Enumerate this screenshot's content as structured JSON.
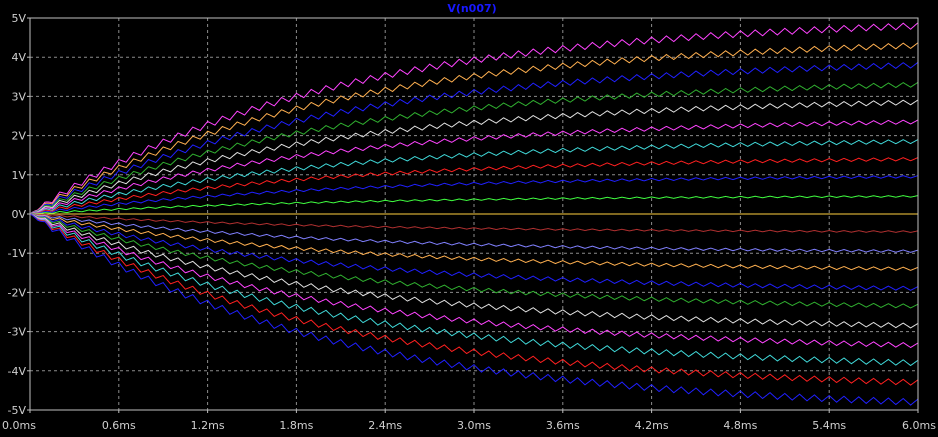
{
  "chart_data": {
    "type": "line",
    "title": "V(n007)",
    "title_color": "#1818ff",
    "background": "#000000",
    "frame_color": "#c0c0c0",
    "grid": true,
    "grid_color": "#8c8c8c",
    "xlabel": "",
    "ylabel": "",
    "xlim": [
      0,
      6.0
    ],
    "ylim": [
      -5,
      5
    ],
    "x_ticks": [
      {
        "v": 0.0,
        "label": "0.0ms"
      },
      {
        "v": 0.6,
        "label": "0.6ms"
      },
      {
        "v": 1.2,
        "label": "1.2ms"
      },
      {
        "v": 1.8,
        "label": "1.8ms"
      },
      {
        "v": 2.4,
        "label": "2.4ms"
      },
      {
        "v": 3.0,
        "label": "3.0ms"
      },
      {
        "v": 3.6,
        "label": "3.6ms"
      },
      {
        "v": 4.2,
        "label": "4.2ms"
      },
      {
        "v": 4.8,
        "label": "4.8ms"
      },
      {
        "v": 5.4,
        "label": "5.4ms"
      },
      {
        "v": 6.0,
        "label": "6.0ms"
      }
    ],
    "y_ticks": [
      {
        "v": 5,
        "label": "5V"
      },
      {
        "v": 4,
        "label": "4V"
      },
      {
        "v": 3,
        "label": "3V"
      },
      {
        "v": 2,
        "label": "2V"
      },
      {
        "v": 1,
        "label": "1V"
      },
      {
        "v": 0,
        "label": "0V"
      },
      {
        "v": -1,
        "label": "-1V"
      },
      {
        "v": -2,
        "label": "-2V"
      },
      {
        "v": -3,
        "label": "-3V"
      },
      {
        "v": -4,
        "label": "-4V"
      },
      {
        "v": -5,
        "label": "-5V"
      }
    ],
    "ripple_period_ms": 0.1,
    "series": [
      {
        "color": "#ff44ff",
        "final_v": 4.8,
        "ripple_v": 0.08
      },
      {
        "color": "#ffb050",
        "final_v": 4.3,
        "ripple_v": 0.07
      },
      {
        "color": "#2020ff",
        "final_v": 3.8,
        "ripple_v": 0.07
      },
      {
        "color": "#30b030",
        "final_v": 3.3,
        "ripple_v": 0.06
      },
      {
        "color": "#e0e0e0",
        "final_v": 2.85,
        "ripple_v": 0.06
      },
      {
        "color": "#ff44ff",
        "final_v": 2.35,
        "ripple_v": 0.05
      },
      {
        "color": "#40d8d8",
        "final_v": 1.85,
        "ripple_v": 0.05
      },
      {
        "color": "#ff2020",
        "final_v": 1.4,
        "ripple_v": 0.04
      },
      {
        "color": "#2020ff",
        "final_v": 0.95,
        "ripple_v": 0.03
      },
      {
        "color": "#40ff40",
        "final_v": 0.45,
        "ripple_v": 0.02
      },
      {
        "color": "#ffd040",
        "final_v": 0.0,
        "ripple_v": 0.0
      },
      {
        "color": "#b03030",
        "final_v": -0.45,
        "ripple_v": 0.02
      },
      {
        "color": "#8080ff",
        "final_v": -0.95,
        "ripple_v": 0.03
      },
      {
        "color": "#ffb050",
        "final_v": -1.4,
        "ripple_v": 0.04
      },
      {
        "color": "#2020ff",
        "final_v": -1.9,
        "ripple_v": 0.05
      },
      {
        "color": "#30b030",
        "final_v": -2.35,
        "ripple_v": 0.05
      },
      {
        "color": "#e0e0e0",
        "final_v": -2.85,
        "ripple_v": 0.06
      },
      {
        "color": "#ff44ff",
        "final_v": -3.35,
        "ripple_v": 0.06
      },
      {
        "color": "#40d8d8",
        "final_v": -3.8,
        "ripple_v": 0.07
      },
      {
        "color": "#ff2020",
        "final_v": -4.3,
        "ripple_v": 0.07
      },
      {
        "color": "#2020ff",
        "final_v": -4.8,
        "ripple_v": 0.08
      }
    ]
  }
}
